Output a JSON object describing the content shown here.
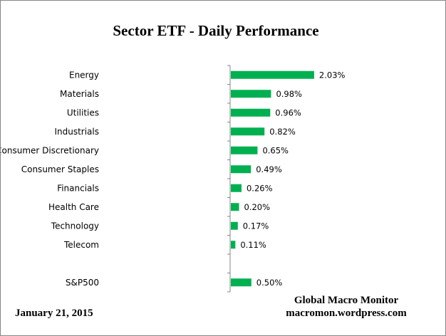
{
  "chart_data": {
    "type": "bar",
    "orientation": "horizontal",
    "title": "Sector ETF - Daily  Performance",
    "categories": [
      "Energy",
      "Materials",
      "Utilities",
      "Industrials",
      "Consumer Discretionary",
      "Consumer Staples",
      "Financials",
      "Health Care",
      "Technology",
      "Telecom",
      "",
      "S&P500"
    ],
    "values": [
      2.03,
      0.98,
      0.96,
      0.82,
      0.65,
      0.49,
      0.26,
      0.2,
      0.17,
      0.11,
      null,
      0.5
    ],
    "data_labels": [
      "2.03%",
      "0.98%",
      "0.96%",
      "0.82%",
      "0.65%",
      "0.49%",
      "0.26%",
      "0.20%",
      "0.17%",
      "0.11%",
      "",
      "0.50%"
    ],
    "unit": "%",
    "bar_color": "#00b050",
    "grid": false,
    "legend": "none"
  },
  "footer": {
    "date": "January 21,  2015",
    "source_name": "Global Macro Monitor",
    "source_url": "macromon.wordpress.com"
  }
}
